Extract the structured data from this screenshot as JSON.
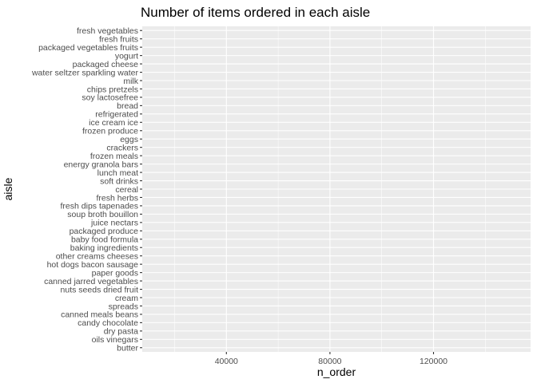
{
  "chart_data": {
    "type": "bar",
    "orientation": "horizontal",
    "title": "Number of items ordered in each aisle",
    "xlabel": "n_order",
    "ylabel": "aisle",
    "xlim": [
      7500,
      157500
    ],
    "xticks": [
      40000,
      80000,
      120000
    ],
    "xtick_labels": [
      "40000",
      "80000",
      "120000"
    ],
    "x_minor_gridlines": [
      20000,
      60000,
      100000,
      140000
    ],
    "grid": true,
    "background": "#ebebeb",
    "gridline_color": "#ffffff",
    "categories": [
      "butter",
      "oils vinegars",
      "dry pasta",
      "candy chocolate",
      "canned meals beans",
      "spreads",
      "cream",
      "nuts seeds dried fruit",
      "canned jarred vegetables",
      "paper goods",
      "hot dogs bacon sausage",
      "other creams cheeses",
      "baking ingredients",
      "baby food formula",
      "packaged produce",
      "juice nectars",
      "soup broth bouillon",
      "fresh dips tapenades",
      "fresh herbs",
      "cereal",
      "soft drinks",
      "lunch meat",
      "energy granola bars",
      "frozen meals",
      "crackers",
      "eggs",
      "frozen produce",
      "ice cream ice",
      "refrigerated",
      "bread",
      "soy lactosefree",
      "chips pretzels",
      "milk",
      "water seltzer sparkling water",
      "packaged cheese",
      "yogurt",
      "packaged vegetables fruits",
      "fresh fruits",
      "fresh vegetables"
    ]
  }
}
